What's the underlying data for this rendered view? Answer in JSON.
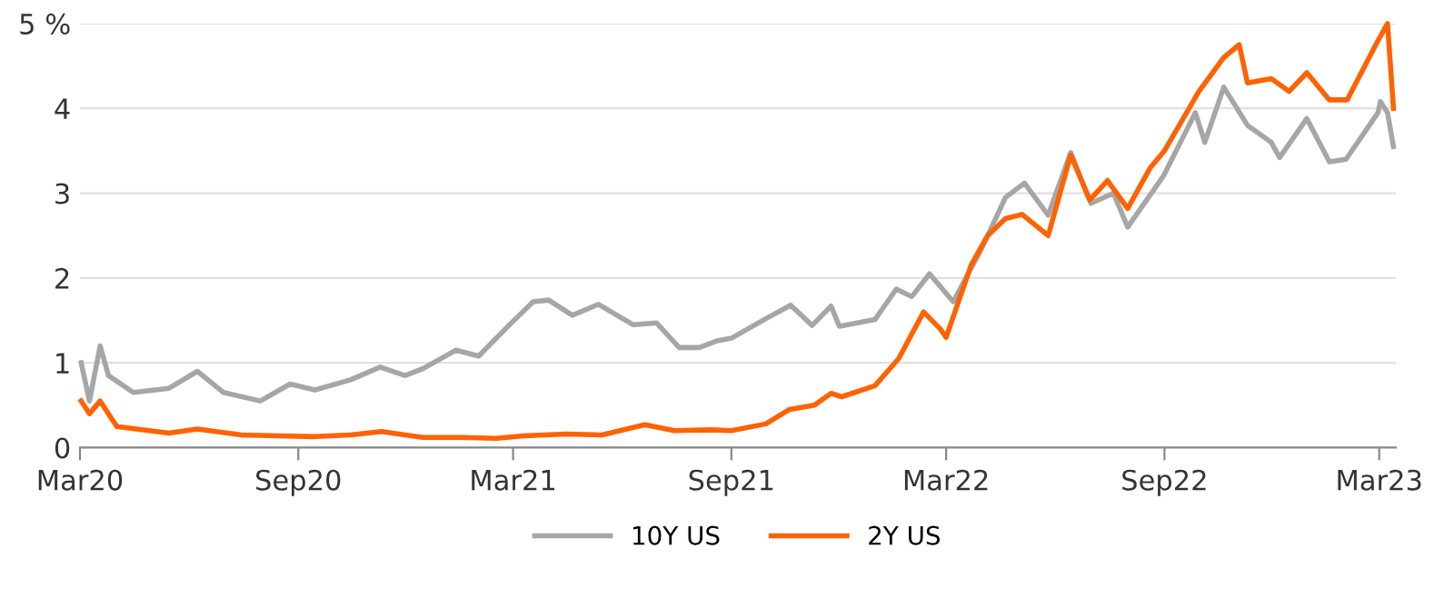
{
  "chart_data": {
    "type": "line",
    "x": [
      "2020-03-02",
      "2020-03-09",
      "2020-03-18",
      "2020-03-25",
      "2020-04-15",
      "2020-05-15",
      "2020-06-08",
      "2020-06-30",
      "2020-07-31",
      "2020-08-25",
      "2020-09-15",
      "2020-10-15",
      "2020-11-09",
      "2020-11-30",
      "2020-12-15",
      "2021-01-12",
      "2021-01-31",
      "2021-02-26",
      "2021-03-18",
      "2021-03-31",
      "2021-04-20",
      "2021-05-12",
      "2021-06-10",
      "2021-06-30",
      "2021-07-19",
      "2021-08-05",
      "2021-08-20",
      "2021-09-01",
      "2021-09-30",
      "2021-10-21",
      "2021-11-08",
      "2021-11-24",
      "2021-12-01",
      "2021-12-31",
      "2022-01-18",
      "2022-01-31",
      "2022-02-15",
      "2022-03-07",
      "2022-03-31",
      "2022-04-20",
      "2022-05-06",
      "2022-05-26",
      "2022-06-14",
      "2022-07-01",
      "2022-07-20",
      "2022-08-01",
      "2022-08-31",
      "2022-09-27",
      "2022-10-05",
      "2022-10-21",
      "2022-11-10",
      "2022-11-30",
      "2022-12-07",
      "2022-12-30",
      "2023-01-18",
      "2023-02-01",
      "2023-02-28",
      "2023-03-02",
      "2023-03-08",
      "2023-03-13"
    ],
    "series": [
      {
        "name": "10Y US",
        "color": "#a6a6a6",
        "values": [
          1.0,
          0.55,
          1.2,
          0.85,
          0.65,
          0.7,
          0.9,
          0.65,
          0.55,
          0.75,
          0.68,
          0.8,
          0.95,
          0.85,
          0.93,
          1.15,
          1.08,
          1.45,
          1.72,
          1.74,
          1.56,
          1.69,
          1.45,
          1.47,
          1.18,
          1.18,
          1.26,
          1.29,
          1.52,
          1.68,
          1.44,
          1.67,
          1.43,
          1.51,
          1.87,
          1.78,
          2.05,
          1.72,
          2.35,
          2.95,
          3.12,
          2.74,
          3.48,
          2.88,
          3.0,
          2.6,
          3.2,
          3.95,
          3.6,
          4.25,
          3.8,
          3.6,
          3.42,
          3.88,
          3.37,
          3.4,
          3.95,
          4.08,
          3.95,
          3.55
        ]
      },
      {
        "name": "2Y US",
        "color": "#ff6200",
        "x": [
          "2020-03-02",
          "2020-03-09",
          "2020-03-18",
          "2020-04-01",
          "2020-05-15",
          "2020-06-08",
          "2020-07-15",
          "2020-08-15",
          "2020-09-15",
          "2020-10-15",
          "2020-11-10",
          "2020-12-15",
          "2021-01-15",
          "2021-02-15",
          "2021-03-10",
          "2021-04-15",
          "2021-05-15",
          "2021-06-20",
          "2021-07-15",
          "2021-08-15",
          "2021-09-01",
          "2021-09-30",
          "2021-10-20",
          "2021-11-10",
          "2021-11-24",
          "2021-12-03",
          "2021-12-31",
          "2022-01-20",
          "2022-02-10",
          "2022-02-24",
          "2022-03-01",
          "2022-03-22",
          "2022-04-05",
          "2022-04-20",
          "2022-05-04",
          "2022-05-26",
          "2022-06-14",
          "2022-06-30",
          "2022-07-15",
          "2022-08-01",
          "2022-08-20",
          "2022-09-01",
          "2022-09-30",
          "2022-10-21",
          "2022-11-03",
          "2022-11-10",
          "2022-11-30",
          "2022-12-15",
          "2022-12-30",
          "2023-01-18",
          "2023-02-02",
          "2023-02-28",
          "2023-03-08",
          "2023-03-13"
        ],
        "values": [
          0.55,
          0.4,
          0.55,
          0.25,
          0.17,
          0.22,
          0.15,
          0.14,
          0.13,
          0.15,
          0.19,
          0.12,
          0.12,
          0.11,
          0.14,
          0.16,
          0.15,
          0.27,
          0.2,
          0.21,
          0.2,
          0.28,
          0.45,
          0.5,
          0.64,
          0.6,
          0.73,
          1.05,
          1.6,
          1.4,
          1.3,
          2.15,
          2.5,
          2.7,
          2.75,
          2.5,
          3.45,
          2.92,
          3.15,
          2.82,
          3.3,
          3.5,
          4.2,
          4.6,
          4.75,
          4.3,
          4.35,
          4.2,
          4.42,
          4.1,
          4.1,
          4.8,
          5.0,
          4.0
        ]
      }
    ],
    "xlim": [
      "2020-03-01",
      "2023-03-15"
    ],
    "xticks": [
      {
        "value": "2020-03-01",
        "label": "Mar20"
      },
      {
        "value": "2020-09-01",
        "label": "Sep20"
      },
      {
        "value": "2021-03-01",
        "label": "Mar21"
      },
      {
        "value": "2021-09-01",
        "label": "Sep21"
      },
      {
        "value": "2022-03-01",
        "label": "Mar22"
      },
      {
        "value": "2022-09-01",
        "label": "Sep22"
      },
      {
        "value": "2023-03-01",
        "label": "Mar23"
      }
    ],
    "ylim": [
      0,
      5
    ],
    "yticks": [
      0,
      1,
      2,
      3,
      4,
      {
        "value": 5,
        "label": "5 %"
      }
    ],
    "grid": "y",
    "legend": "bottom",
    "line_style": "solid",
    "marker": "none"
  }
}
